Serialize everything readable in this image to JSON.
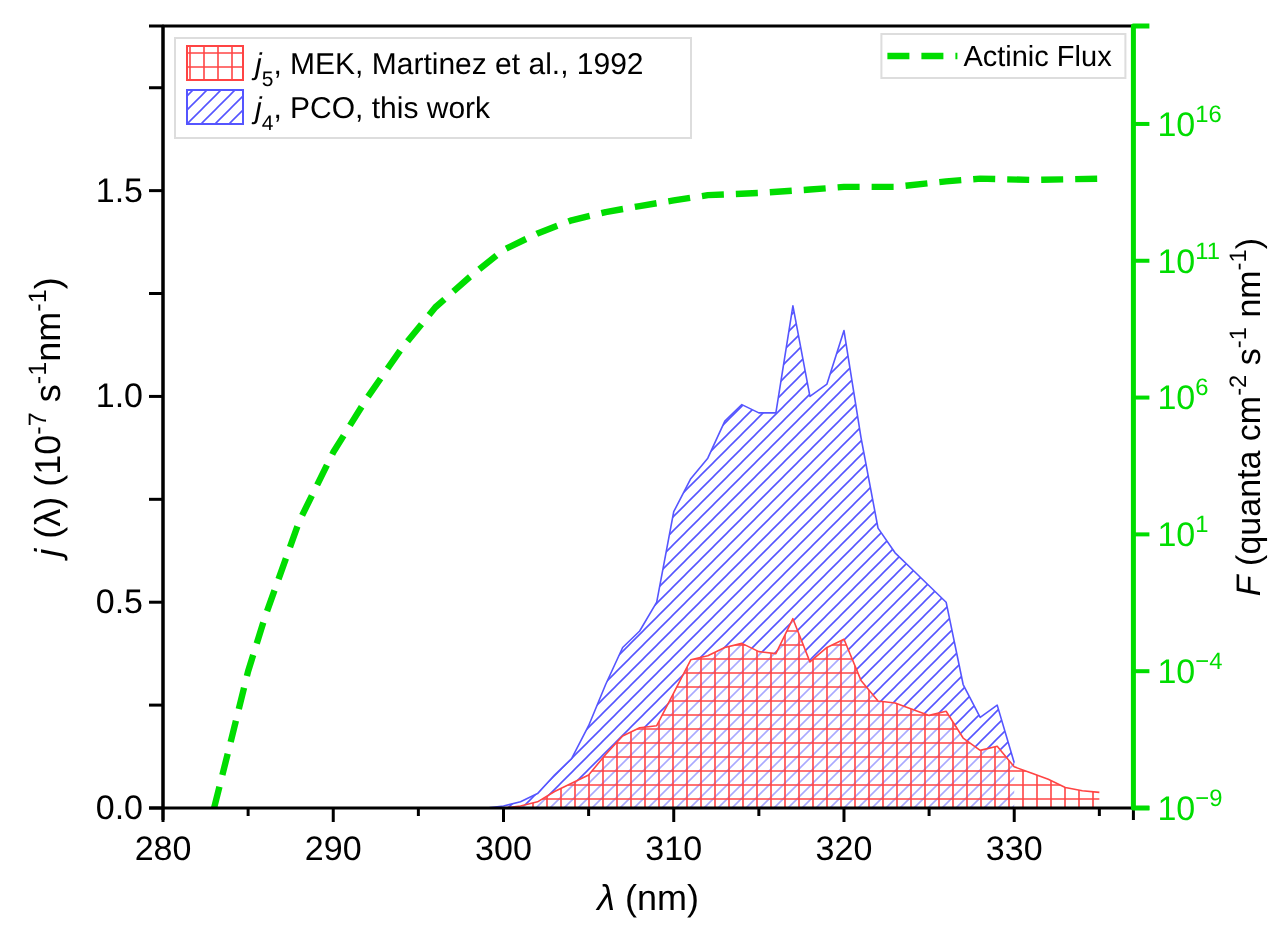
{
  "chart_data": {
    "type": "area",
    "xlabel": "λ (nm)",
    "ylabel": "j (λ) (10$^{-7}$ s$^{-1}$nm$^{-1}$)",
    "y2label": "F (quanta cm$^{-2}$ s$^{-1}$ nm$^{-1}$)",
    "xlim": [
      280,
      337
    ],
    "xticks": [
      280,
      {
        "value": 285,
        "label": null
      },
      290,
      {
        "value": 295,
        "label": null
      },
      300,
      {
        "value": 305,
        "label": null
      },
      310,
      {
        "value": 315,
        "label": null
      },
      320,
      {
        "value": 325,
        "label": null
      },
      330,
      {
        "value": 335,
        "label": null
      }
    ],
    "ylim": [
      0,
      1.9
    ],
    "yticks": [
      {
        "value": 0,
        "label": "0.0"
      },
      {
        "value": 0.25,
        "label": null
      },
      0.5,
      {
        "value": 0.75,
        "label": null
      },
      {
        "value": 1,
        "label": "1.0"
      },
      {
        "value": 1.25,
        "label": null
      },
      1.5,
      {
        "value": 1.75,
        "label": null
      }
    ],
    "y2lim": [
      1e-09,
      3.8e+19
    ],
    "y2ticks": [
      {
        "value": 1e-09,
        "label": "10$^{−9}$"
      },
      {
        "value": 0.0001,
        "label": "10$^{−4}$"
      },
      {
        "value": 10,
        "label": "10$^{1}$"
      },
      {
        "value": 1000000.0,
        "label": "10$^{6}$"
      },
      {
        "value": 100000000000.0,
        "label": "10$^{11}$"
      },
      {
        "value": 1e+16,
        "label": "10$^{16}$"
      }
    ],
    "log": "y2",
    "legend": "top left",
    "series": [
      {
        "name": "j$_{4}$, PCO, this work",
        "color": "#5555ff",
        "x": [
          299,
          300,
          301,
          302,
          303,
          304,
          305,
          306,
          307,
          308,
          309,
          310,
          311,
          312,
          313,
          314,
          315,
          316,
          317,
          318,
          319,
          320,
          321,
          322,
          323,
          324,
          325,
          326,
          327,
          328,
          329,
          330
        ],
        "values": [
          0,
          0.005,
          0.015,
          0.035,
          0.08,
          0.12,
          0.2,
          0.3,
          0.39,
          0.43,
          0.5,
          0.72,
          0.8,
          0.85,
          0.94,
          0.98,
          0.96,
          0.96,
          1.22,
          1.0,
          1.03,
          1.16,
          0.9,
          0.68,
          0.62,
          0.58,
          0.54,
          0.5,
          0.3,
          0.22,
          0.25,
          0.11
        ]
      },
      {
        "name": "j$_{5}$, MEK, Martinez et al., 1992",
        "color": "#ff4444",
        "x": [
          300,
          301,
          302,
          303,
          304,
          305,
          306,
          307,
          308,
          309,
          310,
          311,
          312,
          313,
          314,
          315,
          316,
          317,
          318,
          319,
          320,
          321,
          322,
          323,
          324,
          325,
          326,
          327,
          328,
          329,
          330,
          331,
          332,
          333,
          334,
          335
        ],
        "values": [
          0,
          0.005,
          0.015,
          0.04,
          0.06,
          0.08,
          0.13,
          0.175,
          0.195,
          0.2,
          0.28,
          0.36,
          0.37,
          0.39,
          0.4,
          0.38,
          0.375,
          0.46,
          0.355,
          0.39,
          0.41,
          0.31,
          0.26,
          0.255,
          0.24,
          0.225,
          0.235,
          0.17,
          0.14,
          0.15,
          0.1,
          0.085,
          0.07,
          0.05,
          0.042,
          0.038
        ]
      },
      {
        "name": "Actinic Flux",
        "type": "line",
        "axis": "y2",
        "line_style": "dashed",
        "color": "#00dd00",
        "x": [
          283,
          284,
          285,
          286,
          288,
          290,
          292,
          294,
          296,
          298,
          300,
          302,
          304,
          306,
          308,
          310,
          312,
          315,
          318,
          320,
          323,
          326,
          328,
          331,
          335
        ],
        "values": [
          1e-09,
          3e-07,
          0.0001,
          0.01,
          30,
          10000.0,
          1000000.0,
          60000000.0,
          2000000000.0,
          25000000000.0,
          250000000000.0,
          1000000000000.0,
          3000000000000.0,
          6000000000000.0,
          10000000000000.0,
          16000000000000.0,
          25000000000000.0,
          30000000000000.0,
          40000000000000.0,
          50000000000000.0,
          50000000000000.0,
          80000000000000.0,
          100000000000000.0,
          90000000000000.0,
          100000000000000.0
        ]
      }
    ]
  }
}
